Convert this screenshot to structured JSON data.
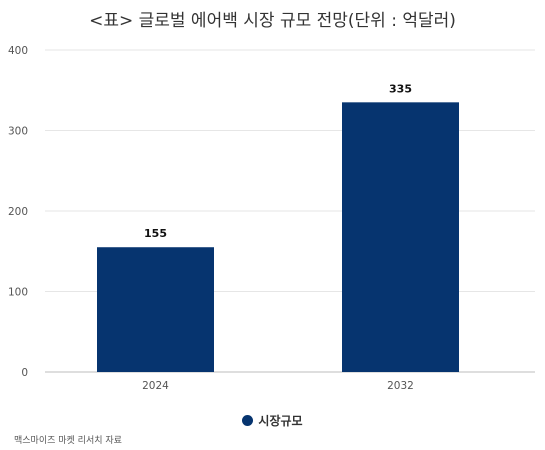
{
  "chart_data": {
    "type": "bar",
    "title": "<표> 글로벌 에어백 시장 규모 전망(단위 : 억달러)",
    "categories": [
      "2024",
      "2032"
    ],
    "series": [
      {
        "name": "시장규모",
        "values": [
          155,
          335
        ],
        "color": "#06346f"
      }
    ],
    "ylim": [
      0,
      400
    ],
    "yticks": [
      0,
      100,
      200,
      300,
      400
    ],
    "grid": true,
    "legend_position": "bottom-center",
    "source": "맥스마이즈 마켓 리서치 자료"
  }
}
